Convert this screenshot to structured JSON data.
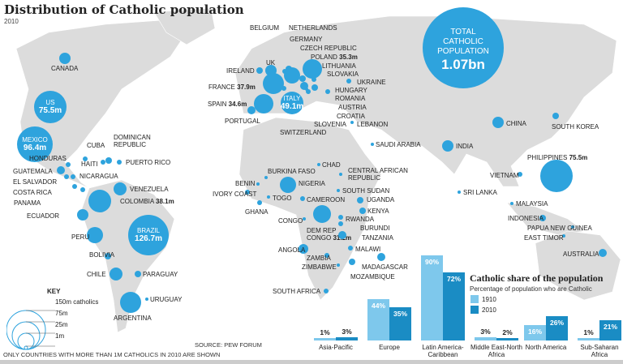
{
  "title": "Distribution of Catholic population",
  "subtitle": "2010",
  "colors": {
    "bubble": "#2ea3dd",
    "bar1910": "#7ec8ec",
    "bar2010": "#1a8cc4",
    "land": "#dcdcdc"
  },
  "total": {
    "line1": "TOTAL",
    "line2": "CATHOLIC",
    "line3": "POPULATION",
    "value": "1.07bn"
  },
  "countries": [
    {
      "name": "CANADA"
    },
    {
      "name": "US",
      "value": "75.5m"
    },
    {
      "name": "MEXICO",
      "value": "96.4m"
    },
    {
      "name": "CUBA"
    },
    {
      "name": "DOMINICAN REPUBLIC"
    },
    {
      "name": "HAITI"
    },
    {
      "name": "PUERTO RICO"
    },
    {
      "name": "HONDURAS"
    },
    {
      "name": "GUATEMALA"
    },
    {
      "name": "EL SALVADOR"
    },
    {
      "name": "NICARAGUA"
    },
    {
      "name": "COSTA RICA"
    },
    {
      "name": "PANAMA"
    },
    {
      "name": "VENEZUELA"
    },
    {
      "name": "COLOMBIA",
      "value": "38.1m"
    },
    {
      "name": "ECUADOR"
    },
    {
      "name": "PERU"
    },
    {
      "name": "BRAZIL",
      "value": "126.7m"
    },
    {
      "name": "BOLIVIA"
    },
    {
      "name": "CHILE"
    },
    {
      "name": "PARAGUAY"
    },
    {
      "name": "URUGUAY"
    },
    {
      "name": "ARGENTINA"
    },
    {
      "name": "IRELAND"
    },
    {
      "name": "UK"
    },
    {
      "name": "BELGIUM"
    },
    {
      "name": "NETHERLANDS"
    },
    {
      "name": "GERMANY"
    },
    {
      "name": "CZECH REPUBLIC"
    },
    {
      "name": "POLAND",
      "value": "35.3m"
    },
    {
      "name": "LITHUANIA"
    },
    {
      "name": "SLOVAKIA"
    },
    {
      "name": "UKRAINE"
    },
    {
      "name": "HUNGARY"
    },
    {
      "name": "ROMANIA"
    },
    {
      "name": "AUSTRIA"
    },
    {
      "name": "CROATIA"
    },
    {
      "name": "SLOVENIA"
    },
    {
      "name": "LEBANON"
    },
    {
      "name": "FRANCE",
      "value": "37.9m"
    },
    {
      "name": "SPAIN",
      "value": "34.6m"
    },
    {
      "name": "PORTUGAL"
    },
    {
      "name": "ITALY",
      "value": "49.1m"
    },
    {
      "name": "SWITZERLAND"
    },
    {
      "name": "SAUDI ARABIA"
    },
    {
      "name": "CHAD"
    },
    {
      "name": "BURKINA FASO"
    },
    {
      "name": "BENIN"
    },
    {
      "name": "IVORY COAST"
    },
    {
      "name": "TOGO"
    },
    {
      "name": "GHANA"
    },
    {
      "name": "NIGERIA"
    },
    {
      "name": "CENTRAL AFRICAN REPUBLIC"
    },
    {
      "name": "SOUTH SUDAN"
    },
    {
      "name": "CAMEROON"
    },
    {
      "name": "UGANDA"
    },
    {
      "name": "KENYA"
    },
    {
      "name": "CONGO"
    },
    {
      "name": "DEM REP CONGO",
      "value": "31.2m"
    },
    {
      "name": "RWANDA"
    },
    {
      "name": "BURUNDI"
    },
    {
      "name": "TANZANIA"
    },
    {
      "name": "MALAWI"
    },
    {
      "name": "ANGOLA"
    },
    {
      "name": "ZAMBIA"
    },
    {
      "name": "ZIMBABWE"
    },
    {
      "name": "MADAGASCAR"
    },
    {
      "name": "MOZAMBIQUE"
    },
    {
      "name": "SOUTH AFRICA"
    },
    {
      "name": "CHINA"
    },
    {
      "name": "SOUTH KOREA"
    },
    {
      "name": "INDIA"
    },
    {
      "name": "PHILIPPINES",
      "value": "75.5m"
    },
    {
      "name": "VIETNAM"
    },
    {
      "name": "SRI LANKA"
    },
    {
      "name": "MALAYSIA"
    },
    {
      "name": "INDONESIA"
    },
    {
      "name": "PAPUA NEW GUINEA"
    },
    {
      "name": "EAST TIMOR"
    },
    {
      "name": "AUSTRALIA"
    }
  ],
  "key": {
    "title": "KEY",
    "items": [
      "150m catholics",
      "75m",
      "25m",
      "1m"
    ]
  },
  "footnote": "ONLY COUNTRIES WITH MORE THAN 1M CATHOLICS IN 2010 ARE SHOWN",
  "source": "SOURCE: PEW FORUM",
  "chart_data": {
    "type": "bar",
    "title": "Catholic share of the population",
    "subtitle": "Percentage of population who are Catholic",
    "categories": [
      "Asia-Pacific",
      "Europe",
      "Latin America-Caribbean",
      "Middle East-North Africa",
      "North America",
      "Sub-Saharan Africa"
    ],
    "series": [
      {
        "name": "1910",
        "values": [
          1,
          44,
          90,
          3,
          16,
          1
        ]
      },
      {
        "name": "2010",
        "values": [
          3,
          35,
          72,
          2,
          26,
          21
        ]
      }
    ],
    "ylim": [
      0,
      100
    ],
    "legend": "top-right"
  }
}
